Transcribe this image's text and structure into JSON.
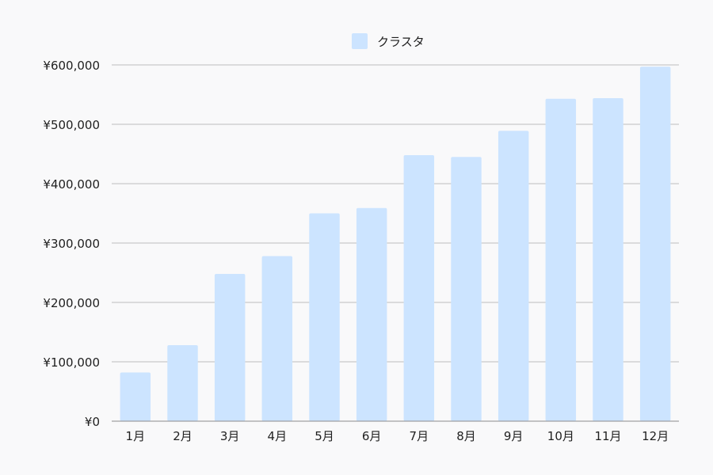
{
  "chart_data": {
    "type": "bar",
    "title": "",
    "xlabel": "",
    "ylabel": "",
    "categories": [
      "1月",
      "2月",
      "3月",
      "4月",
      "5月",
      "6月",
      "7月",
      "8月",
      "9月",
      "10月",
      "11月",
      "12月"
    ],
    "series": [
      {
        "name": "クラスタ",
        "values": [
          82000,
          128000,
          248000,
          278000,
          350000,
          359000,
          448000,
          445000,
          489000,
          543000,
          544000,
          597000
        ]
      }
    ],
    "ylim": [
      0,
      600000
    ],
    "yticks": [
      0,
      100000,
      200000,
      300000,
      400000,
      500000,
      600000
    ],
    "ytick_labels": [
      "¥0",
      "¥100,000",
      "¥200,000",
      "¥300,000",
      "¥400,000",
      "¥500,000",
      "¥600,000"
    ],
    "grid": true,
    "legend_position": "top-center",
    "colors": {
      "bar": "#cce4ff",
      "grid": "#bdbdbd",
      "axis": "#8c8c8c",
      "text": "#1f1f1f",
      "background": "#f9f9fa"
    }
  }
}
